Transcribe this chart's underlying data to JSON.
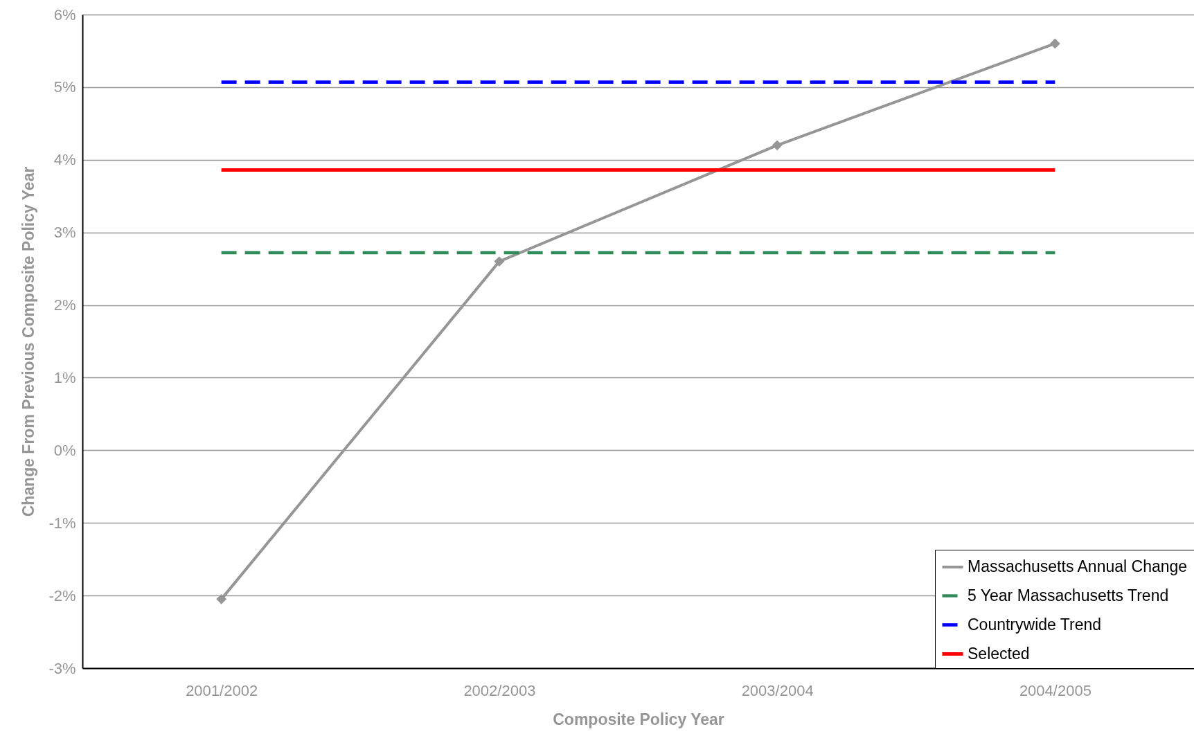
{
  "chart_data": {
    "type": "line",
    "xlabel": "Composite Policy Year",
    "ylabel": "Change From Previous Composite Policy Year",
    "categories": [
      "2001/2002",
      "2002/2003",
      "2003/2004",
      "2004/2005"
    ],
    "series": [
      {
        "name": "Massachusetts Annual Change",
        "color": "#969696",
        "values": [
          -2.05,
          2.6,
          4.2,
          5.6
        ],
        "marker": "diamond",
        "line_style": "solid"
      },
      {
        "name": "5 Year Massachusetts Trend",
        "color": "#2e8b57",
        "values": [
          2.72,
          2.72,
          2.72,
          2.72
        ],
        "marker": "none",
        "line_style": "dashed"
      },
      {
        "name": "Countrywide Trend",
        "color": "#0000ff",
        "values": [
          5.07,
          5.07,
          5.07,
          5.07
        ],
        "marker": "none",
        "line_style": "dashed"
      },
      {
        "name": "Selected",
        "color": "#ff0000",
        "values": [
          3.86,
          3.86,
          3.86,
          3.86
        ],
        "marker": "none",
        "line_style": "solid"
      }
    ],
    "ylim": [
      -3,
      6
    ],
    "yticks": [
      {
        "value": -3,
        "label": "-3%"
      },
      {
        "value": -2,
        "label": "-2%"
      },
      {
        "value": -1,
        "label": "-1%"
      },
      {
        "value": 0,
        "label": "0%"
      },
      {
        "value": 1,
        "label": "1%"
      },
      {
        "value": 2,
        "label": "2%"
      },
      {
        "value": 3,
        "label": "3%"
      },
      {
        "value": 4,
        "label": "4%"
      },
      {
        "value": 5,
        "label": "5%"
      },
      {
        "value": 6,
        "label": "6%"
      }
    ],
    "grid": "y",
    "legend": "bottom right"
  }
}
